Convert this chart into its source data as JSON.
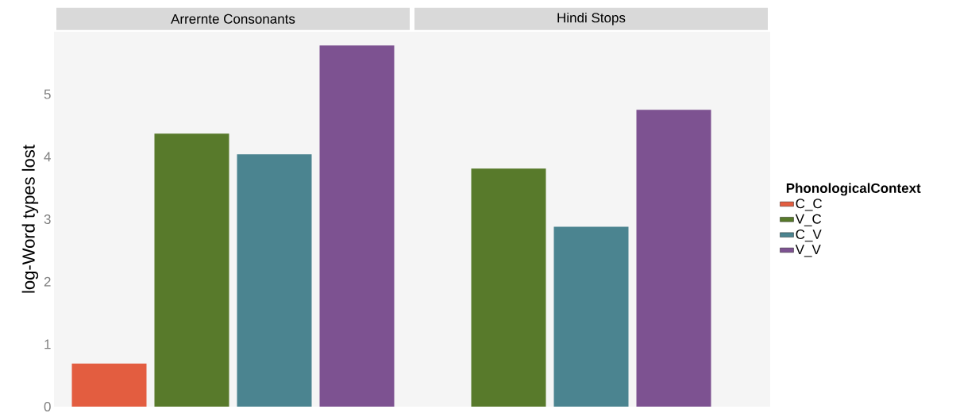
{
  "chart_data": {
    "type": "bar",
    "ylabel": "log-Word types lost",
    "legend_title": "PhonologicalContext",
    "categories": [
      "Arrernte Consonants",
      "Hindi Stops"
    ],
    "series": [
      {
        "name": "C_C",
        "color": "#e35d40",
        "values": [
          0.69,
          null
        ]
      },
      {
        "name": "V_C",
        "color": "#587a2b",
        "values": [
          4.37,
          3.81
        ]
      },
      {
        "name": "C_V",
        "color": "#4b8490",
        "values": [
          4.04,
          2.88
        ]
      },
      {
        "name": "V_V",
        "color": "#7d5291",
        "values": [
          5.78,
          4.75
        ]
      }
    ],
    "ylim": [
      0,
      6
    ],
    "yticks": [
      0,
      1,
      2,
      3,
      4,
      5
    ],
    "legend": "right"
  }
}
